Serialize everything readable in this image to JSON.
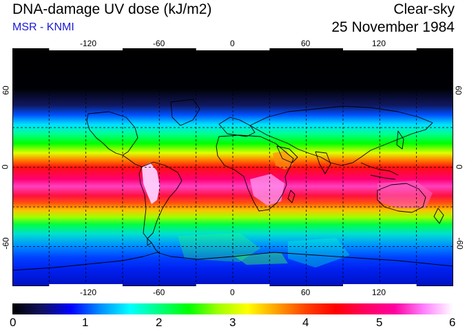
{
  "header": {
    "title": "DNA-damage UV dose (kJ/m2)",
    "source": "MSR - KNMI",
    "condition": "Clear-sky",
    "date": "25 November 1984"
  },
  "map": {
    "longitude_ticks": [
      "-120",
      "-60",
      "0",
      "60",
      "120"
    ],
    "latitude_ticks": [
      "60",
      "0",
      "-60"
    ],
    "longitude_range": [
      -180,
      180
    ],
    "latitude_range": [
      -90,
      90
    ]
  },
  "colorbar": {
    "labels": [
      "0",
      "1",
      "2",
      "3",
      "4",
      "5",
      "6"
    ],
    "range": [
      0,
      6
    ],
    "colors": [
      "#000000",
      "#101060",
      "#0000ff",
      "#0090ff",
      "#00ffff",
      "#00ff80",
      "#00ff00",
      "#a0ff00",
      "#ffff00",
      "#ffa000",
      "#ff4000",
      "#ff0000",
      "#ff0060",
      "#ff00a0",
      "#ff80ff",
      "#ffffff"
    ]
  }
}
